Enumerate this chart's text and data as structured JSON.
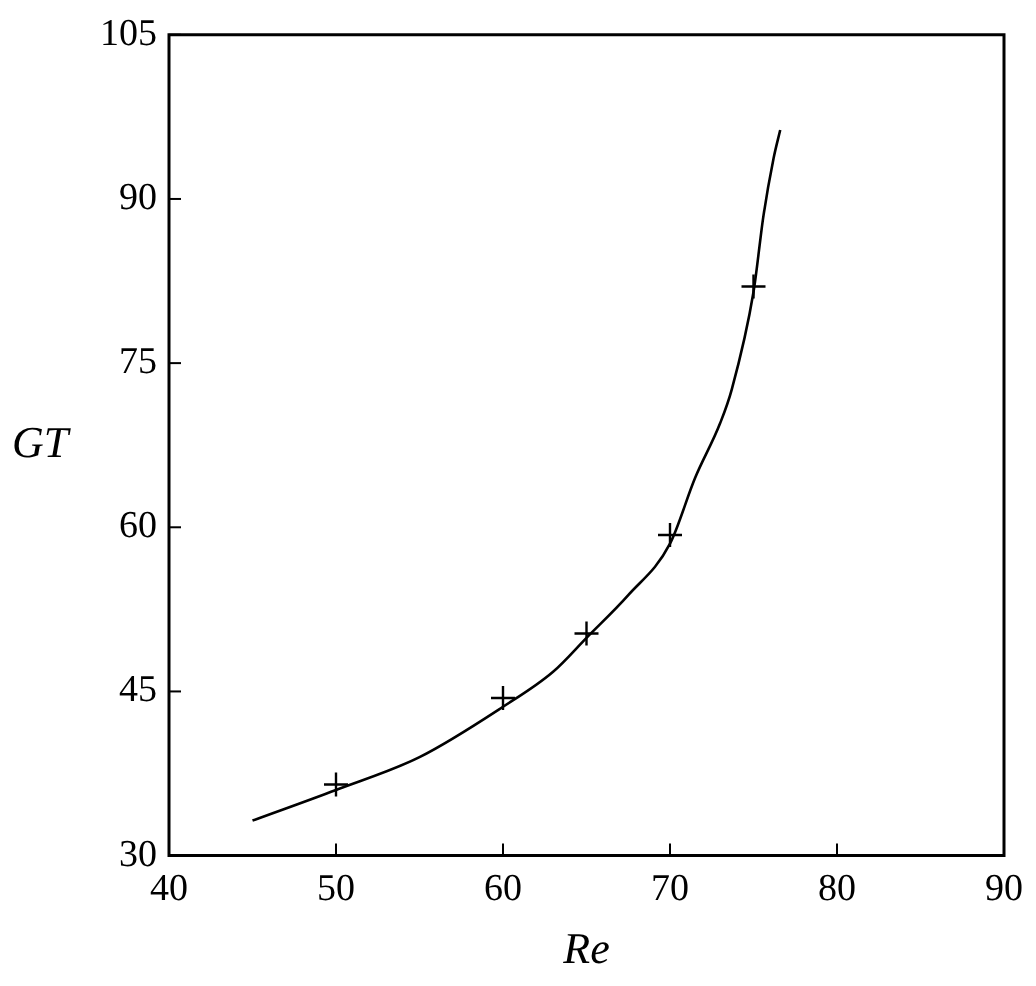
{
  "chart_data": {
    "type": "scatter",
    "xlabel": "Re",
    "ylabel": "GT",
    "xlim": [
      40,
      90
    ],
    "xticks": [
      40,
      50,
      60,
      70,
      80,
      90
    ],
    "ylim": [
      30,
      105
    ],
    "yticks": [
      30,
      45,
      60,
      75,
      90,
      105
    ],
    "grid": false,
    "legend": false,
    "series": [
      {
        "color": "#000000",
        "marker": "cross",
        "x": [
          50,
          60,
          65,
          70,
          75
        ],
        "values": [
          36.5,
          44.4,
          50.3,
          59.3,
          82.0
        ]
      },
      {
        "type": "line",
        "color": "#000000",
        "marker": "none",
        "line_style": "solid",
        "x": [
          45,
          50,
          55,
          60,
          63,
          65,
          67.5,
          70,
          71.5,
          73,
          73.7,
          75,
          75.6,
          76.2,
          76.6
        ],
        "values": [
          33.2,
          36.0,
          39.0,
          43.6,
          46.8,
          49.9,
          53.8,
          58.5,
          64.5,
          69.5,
          72.6,
          81.5,
          88.5,
          93.7,
          96.3
        ]
      }
    ]
  }
}
